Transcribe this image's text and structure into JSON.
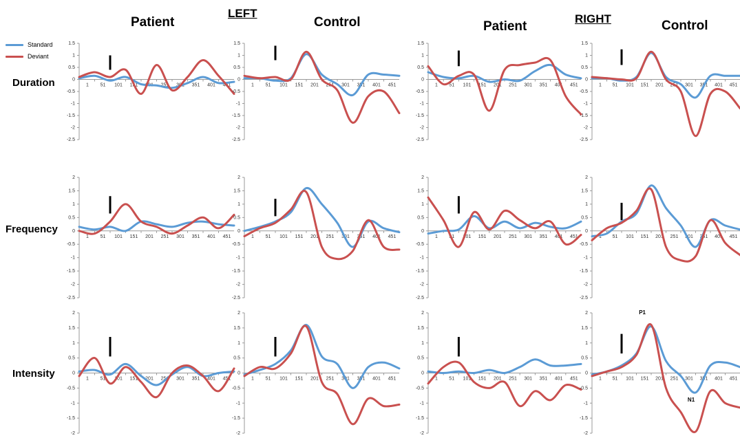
{
  "headers": {
    "left_group": "LEFT",
    "right_group": "RIGHT",
    "left_patient": "Patient",
    "left_control": "Control",
    "right_patient": "Patient",
    "right_control": "Control"
  },
  "rows": [
    "Duration",
    "Frequency",
    "Intensity"
  ],
  "legend": [
    {
      "name": "Standard",
      "color": "#5b9bd5"
    },
    {
      "name": "Deviant",
      "color": "#c9504f"
    }
  ],
  "colors": {
    "standard": "#5b9bd5",
    "deviant": "#c9504f",
    "marker": "#000000"
  },
  "annotations": {
    "p1": "P1",
    "n1": "N1"
  },
  "chart_data": [
    {
      "type": "line",
      "row": "Duration",
      "side": "LEFT",
      "group": "Patient",
      "x": [
        1,
        51,
        101,
        151,
        201,
        251,
        301,
        351,
        401,
        451,
        501
      ],
      "ylim": [
        -2.5,
        1.5
      ],
      "yticks": [
        1.5,
        1,
        0.5,
        0,
        -0.5,
        -1,
        -1.5,
        -2,
        -2.5
      ],
      "xticklabels": [
        "1",
        "51",
        "101",
        "151",
        "201",
        "251",
        "301",
        "351",
        "401",
        "451"
      ],
      "marker_x": 101,
      "marker_y": [
        0.4,
        1.0
      ],
      "series": [
        {
          "name": "Standard",
          "values": [
            0.05,
            0.15,
            -0.05,
            0.1,
            -0.2,
            -0.25,
            -0.35,
            -0.15,
            0.1,
            -0.15,
            -0.1
          ]
        },
        {
          "name": "Deviant",
          "values": [
            0.1,
            0.3,
            0.1,
            0.4,
            -0.6,
            0.6,
            -0.45,
            0.1,
            0.8,
            0.15,
            -0.6
          ]
        }
      ]
    },
    {
      "type": "line",
      "row": "Duration",
      "side": "LEFT",
      "group": "Control",
      "x": [
        1,
        51,
        101,
        151,
        201,
        251,
        301,
        351,
        401,
        451,
        501
      ],
      "ylim": [
        -2.5,
        1.5
      ],
      "yticks": [
        1.5,
        1,
        0.5,
        0,
        -0.5,
        -1,
        -1.5,
        -2,
        -2.5
      ],
      "xticklabels": [
        "1",
        "51",
        "101",
        "151",
        "201",
        "251",
        "301",
        "351",
        "401",
        "451"
      ],
      "marker_x": 101,
      "marker_y": [
        0.8,
        1.4
      ],
      "series": [
        {
          "name": "Standard",
          "values": [
            0.05,
            0.05,
            -0.05,
            0.05,
            1.05,
            0.2,
            -0.2,
            -0.65,
            0.2,
            0.2,
            0.15
          ]
        },
        {
          "name": "Deviant",
          "values": [
            0.15,
            0.05,
            0.1,
            0.0,
            1.15,
            0.0,
            -0.45,
            -1.8,
            -0.7,
            -0.5,
            -1.4
          ]
        }
      ]
    },
    {
      "type": "line",
      "row": "Duration",
      "side": "RIGHT",
      "group": "Patient",
      "x": [
        1,
        51,
        101,
        151,
        201,
        251,
        301,
        351,
        401,
        451,
        501
      ],
      "ylim": [
        -2.5,
        1.5
      ],
      "yticks": [
        1.5,
        1,
        0.5,
        0,
        -0.5,
        -1,
        -1.5,
        -2,
        -2.5
      ],
      "xticklabels": [
        "1",
        "51",
        "101",
        "151",
        "201",
        "251",
        "301",
        "351",
        "401",
        "451"
      ],
      "marker_x": 101,
      "marker_y": [
        0.55,
        1.2
      ],
      "series": [
        {
          "name": "Standard",
          "values": [
            0.3,
            0.1,
            0.05,
            0.15,
            -0.1,
            0.0,
            -0.05,
            0.35,
            0.6,
            0.2,
            0.05
          ]
        },
        {
          "name": "Deviant",
          "values": [
            0.55,
            -0.2,
            0.15,
            0.2,
            -1.3,
            0.4,
            0.6,
            0.7,
            0.8,
            -0.7,
            -1.45
          ]
        }
      ]
    },
    {
      "type": "line",
      "row": "Duration",
      "side": "RIGHT",
      "group": "Control",
      "x": [
        1,
        51,
        101,
        151,
        201,
        251,
        301,
        351,
        401,
        451,
        501
      ],
      "ylim": [
        -2.5,
        1.5
      ],
      "yticks": [
        1.5,
        1,
        0.5,
        0,
        -0.5,
        -1,
        -1.5,
        -2,
        -2.5
      ],
      "xticklabels": [
        "1",
        "51",
        "101",
        "151",
        "201",
        "251",
        "301",
        "351",
        "401",
        "451"
      ],
      "marker_x": 101,
      "marker_y": [
        0.6,
        1.25
      ],
      "series": [
        {
          "name": "Standard",
          "values": [
            0.05,
            0.05,
            -0.05,
            0.1,
            1.1,
            0.1,
            -0.2,
            -0.75,
            0.15,
            0.15,
            0.15
          ]
        },
        {
          "name": "Deviant",
          "values": [
            0.1,
            0.05,
            0.0,
            0.05,
            1.15,
            0.0,
            -0.5,
            -2.35,
            -0.6,
            -0.5,
            -1.2
          ]
        }
      ]
    },
    {
      "type": "line",
      "row": "Frequency",
      "side": "LEFT",
      "group": "Patient",
      "x": [
        1,
        51,
        101,
        151,
        201,
        251,
        301,
        351,
        401,
        451,
        501
      ],
      "ylim": [
        -2.5,
        2
      ],
      "yticks": [
        2,
        1.5,
        1,
        0.5,
        0,
        -0.5,
        -1,
        -1.5,
        -2,
        -2.5
      ],
      "xticklabels": [
        "1",
        "51",
        "101",
        "151",
        "201",
        "251",
        "301",
        "351",
        "401",
        "451"
      ],
      "marker_x": 101,
      "marker_y": [
        0.65,
        1.3
      ],
      "series": [
        {
          "name": "Standard",
          "values": [
            0.15,
            0.05,
            0.15,
            0.0,
            0.35,
            0.25,
            0.15,
            0.3,
            0.35,
            0.25,
            0.2
          ]
        },
        {
          "name": "Deviant",
          "values": [
            0.0,
            -0.1,
            0.35,
            1.0,
            0.35,
            0.15,
            -0.1,
            0.2,
            0.5,
            0.1,
            0.6
          ]
        }
      ]
    },
    {
      "type": "line",
      "row": "Frequency",
      "side": "LEFT",
      "group": "Control",
      "x": [
        1,
        51,
        101,
        151,
        201,
        251,
        301,
        351,
        401,
        451,
        501
      ],
      "ylim": [
        -2.5,
        2
      ],
      "yticks": [
        2,
        1.5,
        1,
        0.5,
        0,
        -0.5,
        -1,
        -1.5,
        -2,
        -2.5
      ],
      "xticklabels": [
        "1",
        "51",
        "101",
        "151",
        "201",
        "251",
        "301",
        "351",
        "401",
        "451"
      ],
      "marker_x": 101,
      "marker_y": [
        0.55,
        1.2
      ],
      "series": [
        {
          "name": "Standard",
          "values": [
            0.0,
            0.15,
            0.35,
            0.7,
            1.6,
            1.0,
            0.3,
            -0.6,
            0.35,
            0.1,
            -0.05
          ]
        },
        {
          "name": "Deviant",
          "values": [
            -0.2,
            0.1,
            0.3,
            0.8,
            1.45,
            -0.6,
            -1.05,
            -0.75,
            0.4,
            -0.6,
            -0.7
          ]
        }
      ]
    },
    {
      "type": "line",
      "row": "Frequency",
      "side": "RIGHT",
      "group": "Patient",
      "x": [
        1,
        51,
        101,
        151,
        201,
        251,
        301,
        351,
        401,
        451,
        501
      ],
      "ylim": [
        -2.5,
        2
      ],
      "yticks": [
        2,
        1.5,
        1,
        0.5,
        0,
        -0.5,
        -1,
        -1.5,
        -2,
        -2.5
      ],
      "xticklabels": [
        "1",
        "51",
        "101",
        "151",
        "201",
        "251",
        "301",
        "351",
        "401",
        "451"
      ],
      "marker_x": 101,
      "marker_y": [
        0.65,
        1.3
      ],
      "series": [
        {
          "name": "Standard",
          "values": [
            -0.1,
            0.0,
            0.05,
            0.55,
            0.1,
            0.35,
            0.1,
            0.3,
            0.15,
            0.1,
            0.35
          ]
        },
        {
          "name": "Deviant",
          "values": [
            1.25,
            0.4,
            -0.6,
            0.7,
            0.05,
            0.75,
            0.4,
            0.1,
            0.35,
            -0.5,
            -0.15
          ]
        }
      ]
    },
    {
      "type": "line",
      "row": "Frequency",
      "side": "RIGHT",
      "group": "Control",
      "x": [
        1,
        51,
        101,
        151,
        201,
        251,
        301,
        351,
        401,
        451,
        501
      ],
      "ylim": [
        -2.5,
        2
      ],
      "yticks": [
        2,
        1.5,
        1,
        0.5,
        0,
        -0.5,
        -1,
        -1.5,
        -2,
        -2.5
      ],
      "xticklabels": [
        "1",
        "51",
        "101",
        "151",
        "201",
        "251",
        "301",
        "351",
        "401",
        "451"
      ],
      "marker_x": 101,
      "marker_y": [
        0.4,
        1.05
      ],
      "series": [
        {
          "name": "Standard",
          "values": [
            -0.2,
            -0.1,
            0.35,
            0.65,
            1.7,
            0.85,
            0.2,
            -0.6,
            0.4,
            0.2,
            0.05
          ]
        },
        {
          "name": "Deviant",
          "values": [
            -0.35,
            0.1,
            0.3,
            0.75,
            1.55,
            -0.6,
            -1.1,
            -0.95,
            0.4,
            -0.45,
            -0.9
          ]
        }
      ]
    },
    {
      "type": "line",
      "row": "Intensity",
      "side": "LEFT",
      "group": "Patient",
      "x": [
        1,
        51,
        101,
        151,
        201,
        251,
        301,
        351,
        401,
        451,
        501
      ],
      "ylim": [
        -2,
        2
      ],
      "yticks": [
        2,
        1.5,
        1,
        0.5,
        0,
        -0.5,
        -1,
        -1.5,
        -2
      ],
      "xticklabels": [
        "1",
        "51",
        "101",
        "151",
        "201",
        "251",
        "301",
        "351",
        "401",
        "451"
      ],
      "marker_x": 101,
      "marker_y": [
        0.55,
        1.2
      ],
      "series": [
        {
          "name": "Standard",
          "values": [
            0.05,
            0.1,
            -0.05,
            0.3,
            -0.1,
            -0.4,
            -0.05,
            0.2,
            -0.1,
            0.0,
            0.05
          ]
        },
        {
          "name": "Deviant",
          "values": [
            -0.1,
            0.5,
            -0.35,
            0.2,
            -0.3,
            -0.8,
            0.0,
            0.25,
            -0.1,
            -0.6,
            0.15
          ]
        }
      ]
    },
    {
      "type": "line",
      "row": "Intensity",
      "side": "LEFT",
      "group": "Control",
      "x": [
        1,
        51,
        101,
        151,
        201,
        251,
        301,
        351,
        401,
        451,
        501
      ],
      "ylim": [
        -2,
        2
      ],
      "yticks": [
        2,
        1.5,
        1,
        0.5,
        0,
        -0.5,
        -1,
        -1.5,
        -2
      ],
      "xticklabels": [
        "1",
        "51",
        "101",
        "151",
        "201",
        "251",
        "301",
        "351",
        "401",
        "451"
      ],
      "marker_x": 101,
      "marker_y": [
        0.55,
        1.2
      ],
      "series": [
        {
          "name": "Standard",
          "values": [
            -0.05,
            0.1,
            0.3,
            0.75,
            1.6,
            0.55,
            0.3,
            -0.5,
            0.2,
            0.35,
            0.15
          ]
        },
        {
          "name": "Deviant",
          "values": [
            -0.1,
            0.2,
            0.15,
            0.65,
            1.55,
            -0.3,
            -0.7,
            -1.7,
            -0.85,
            -1.1,
            -1.05
          ]
        }
      ]
    },
    {
      "type": "line",
      "row": "Intensity",
      "side": "RIGHT",
      "group": "Patient",
      "x": [
        1,
        51,
        101,
        151,
        201,
        251,
        301,
        351,
        401,
        451,
        501
      ],
      "ylim": [
        -2,
        2
      ],
      "yticks": [
        2,
        1.5,
        1,
        0.5,
        0,
        -0.5,
        -1,
        -1.5,
        -2
      ],
      "xticklabels": [
        "1",
        "51",
        "101",
        "151",
        "201",
        "251",
        "301",
        "351",
        "401",
        "451"
      ],
      "marker_x": 101,
      "marker_y": [
        0.55,
        1.2
      ],
      "series": [
        {
          "name": "Standard",
          "values": [
            0.05,
            0.0,
            0.05,
            0.0,
            0.1,
            0.0,
            0.2,
            0.45,
            0.25,
            0.25,
            0.3
          ]
        },
        {
          "name": "Deviant",
          "values": [
            -0.35,
            0.2,
            0.35,
            -0.3,
            -0.5,
            -0.3,
            -1.1,
            -0.6,
            -0.9,
            -0.4,
            -0.55
          ]
        }
      ]
    },
    {
      "type": "line",
      "row": "Intensity",
      "side": "RIGHT",
      "group": "Control",
      "x": [
        1,
        51,
        101,
        151,
        201,
        251,
        301,
        351,
        401,
        451,
        501
      ],
      "ylim": [
        -2,
        2
      ],
      "yticks": [
        2,
        1.5,
        1,
        0.5,
        0,
        -0.5,
        -1,
        -1.5,
        -2
      ],
      "xticklabels": [
        "1",
        "51",
        "101",
        "151",
        "201",
        "251",
        "301",
        "351",
        "401",
        "451"
      ],
      "marker_x": 101,
      "marker_y": [
        0.65,
        1.3
      ],
      "series": [
        {
          "name": "Standard",
          "values": [
            -0.05,
            0.05,
            0.25,
            0.65,
            1.55,
            0.4,
            -0.1,
            -0.65,
            0.25,
            0.35,
            0.2
          ]
        },
        {
          "name": "Deviant",
          "values": [
            -0.1,
            0.05,
            0.2,
            0.6,
            1.6,
            -0.5,
            -1.3,
            -1.95,
            -0.6,
            -1.0,
            -1.15
          ]
        }
      ]
    }
  ]
}
